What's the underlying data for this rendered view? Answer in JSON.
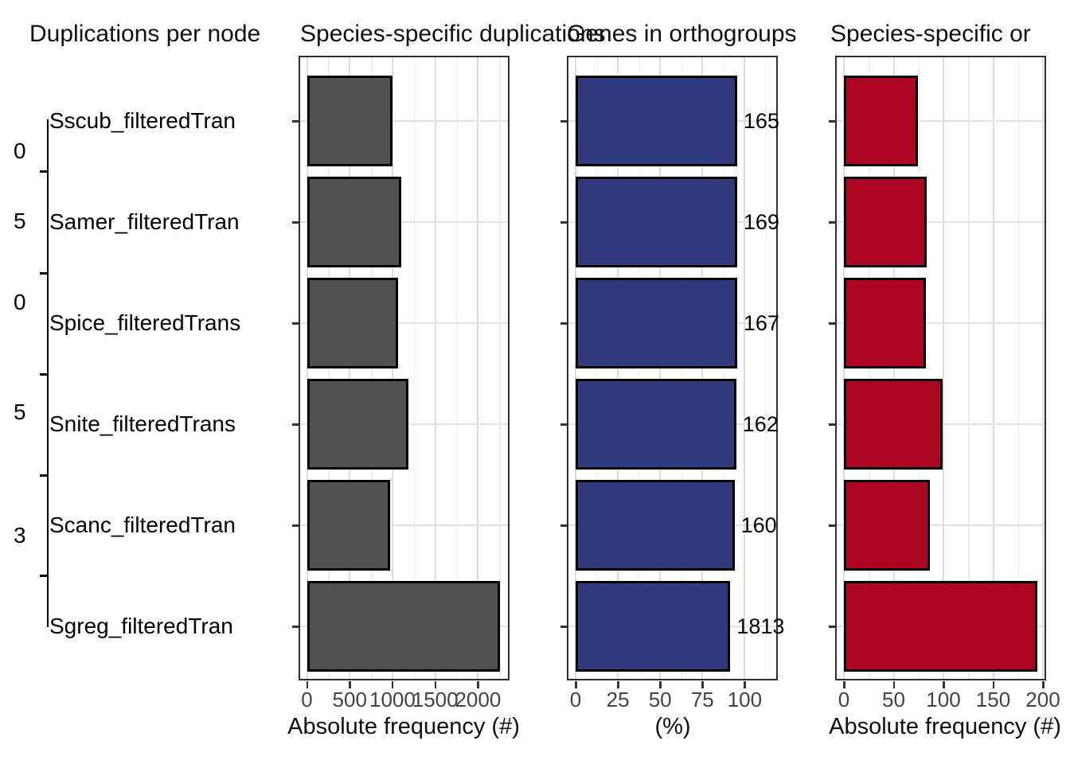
{
  "figure": {
    "titles": [
      {
        "text": "Duplications per node"
      },
      {
        "text": "Species-specific duplications"
      },
      {
        "text": "Genes in orthogroups"
      },
      {
        "text": "Species-specific or"
      }
    ]
  },
  "tree": {
    "species": [
      "Sscub_filteredTran",
      "Samer_filteredTran",
      "Spice_filteredTrans",
      "Snite_filteredTrans",
      "Scanc_filteredTran",
      "Sgreg_filteredTran"
    ],
    "node_labels": [
      "0",
      "5",
      "0",
      "5",
      "3"
    ]
  },
  "colors": {
    "gray_bar": "#515151",
    "blue_bar": "#313A7C",
    "red_bar": "#AD0622",
    "bar_border": "#000000",
    "panel_border": "#2e2e2e",
    "grid_major": "#dcdcdc",
    "grid_minor": "#ededed"
  },
  "chart_data": [
    {
      "type": "bar",
      "orientation": "horizontal",
      "title": "Species-specific duplications",
      "categories": [
        "Sscub_filteredTran",
        "Samer_filteredTran",
        "Spice_filteredTrans",
        "Snite_filteredTrans",
        "Scanc_filteredTran",
        "Sgreg_filteredTran"
      ],
      "values": [
        1000,
        1100,
        1070,
        1190,
        970,
        2260
      ],
      "xlabel": "Absolute frequency (#)",
      "xticks": [
        0,
        500,
        1000,
        1500,
        2000
      ],
      "xtick_labels": [
        "0",
        "500",
        "1000",
        "1500",
        "2000"
      ],
      "xlim": [
        0,
        2400
      ],
      "grid": true,
      "bar_color": "#515151"
    },
    {
      "type": "bar",
      "orientation": "horizontal",
      "title": "Genes in orthogroups",
      "categories": [
        "Sscub_filteredTran",
        "Samer_filteredTran",
        "Spice_filteredTrans",
        "Snite_filteredTrans",
        "Scanc_filteredTran",
        "Sgreg_filteredTran"
      ],
      "values": [
        95.5,
        95.5,
        95.5,
        95,
        94,
        91.5
      ],
      "bar_labels": [
        "165",
        "169",
        "167",
        "162",
        "160",
        "1813"
      ],
      "xlabel": "(%)",
      "xticks": [
        0,
        25,
        50,
        75,
        100
      ],
      "xtick_labels": [
        "0",
        "25",
        "50",
        "75",
        "100"
      ],
      "xlim": [
        0,
        118
      ],
      "grid": true,
      "bar_color": "#313A7C"
    },
    {
      "type": "bar",
      "orientation": "horizontal",
      "title": "Species-specific or",
      "categories": [
        "Sscub_filteredTran",
        "Samer_filteredTran",
        "Spice_filteredTrans",
        "Snite_filteredTrans",
        "Scanc_filteredTran",
        "Sgreg_filteredTran"
      ],
      "values": [
        74,
        83,
        82,
        99,
        86,
        194
      ],
      "xlabel": "Absolute frequency (#)",
      "xticks": [
        0,
        50,
        100,
        150,
        200
      ],
      "xtick_labels": [
        "0",
        "50",
        "100",
        "150",
        "200"
      ],
      "xlim": [
        0,
        203
      ],
      "grid": true,
      "bar_color": "#AD0622"
    }
  ]
}
